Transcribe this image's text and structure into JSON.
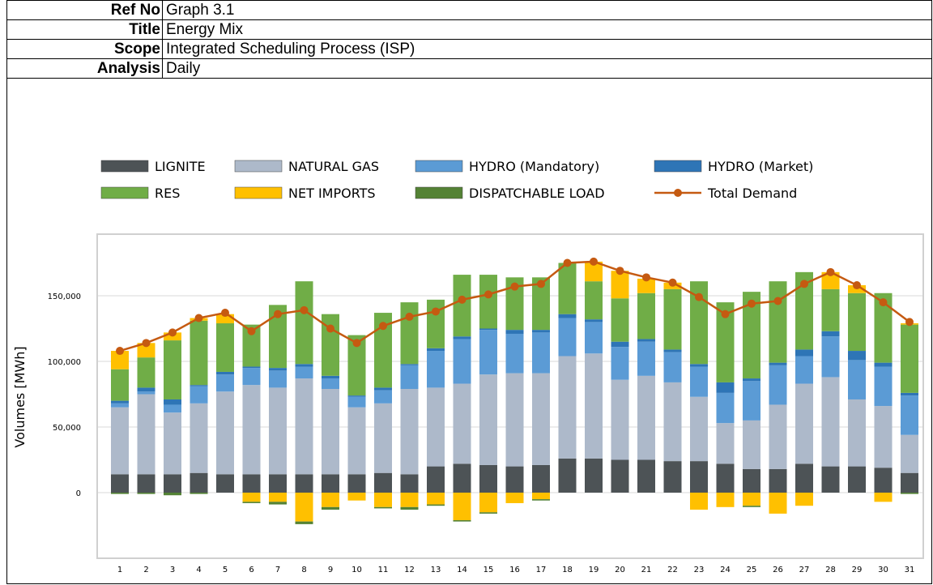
{
  "header": {
    "rows": [
      [
        "Ref No",
        "Graph 3.1"
      ],
      [
        "Title",
        "Energy Mix"
      ],
      [
        "Scope",
        "Integrated Scheduling Process (ISP)"
      ],
      [
        "Analysis",
        "Daily"
      ]
    ]
  },
  "chart_data": {
    "type": "bar",
    "stacked": true,
    "y_label": "Volumes [MWh]",
    "categories": [
      "1",
      "2",
      "3",
      "4",
      "5",
      "6",
      "7",
      "8",
      "9",
      "10",
      "11",
      "12",
      "13",
      "14",
      "15",
      "16",
      "17",
      "18",
      "19",
      "20",
      "21",
      "22",
      "23",
      "24",
      "25",
      "26",
      "27",
      "28",
      "29",
      "30",
      "31"
    ],
    "ylim": [
      -50000,
      200000
    ],
    "yticks": [
      {
        "value": 0,
        "label": "0"
      },
      {
        "value": 50000,
        "label": "50,000"
      },
      {
        "value": 100000,
        "label": "100,000"
      },
      {
        "value": 150000,
        "label": "150,000"
      }
    ],
    "grid": true,
    "series": [
      {
        "name": "LIGNITE",
        "color": "#4d5356",
        "values": [
          14000,
          14000,
          14000,
          15000,
          14000,
          14000,
          14000,
          14000,
          14000,
          14000,
          15000,
          14000,
          20000,
          22000,
          21000,
          20000,
          21000,
          26000,
          26000,
          25000,
          25000,
          24000,
          24000,
          22000,
          18000,
          18000,
          22000,
          20000,
          20000,
          19000,
          15000
        ]
      },
      {
        "name": "NATURAL GAS",
        "color": "#adb9ca",
        "values": [
          51000,
          61000,
          47000,
          53000,
          63000,
          68000,
          66000,
          73000,
          65000,
          51000,
          53000,
          65000,
          60000,
          61000,
          69000,
          71000,
          70000,
          78000,
          80000,
          61000,
          64000,
          60000,
          49000,
          31000,
          37000,
          49000,
          61000,
          68000,
          51000,
          47000,
          29000
        ]
      },
      {
        "name": "HYDRO (Mandatory)",
        "color": "#5b9bd5",
        "values": [
          3000,
          2000,
          6000,
          13000,
          13000,
          13000,
          13000,
          9000,
          8000,
          8000,
          10000,
          18000,
          28000,
          34000,
          34000,
          30000,
          31000,
          29000,
          24000,
          25000,
          26000,
          23000,
          23000,
          23000,
          30000,
          30000,
          21000,
          31000,
          30000,
          30000,
          30000
        ]
      },
      {
        "name": "HYDRO (Market)",
        "color": "#2e75b6",
        "values": [
          2000,
          3000,
          4000,
          1000,
          2000,
          1000,
          2000,
          2000,
          2000,
          1000,
          2000,
          1000,
          2000,
          2000,
          1000,
          3000,
          2000,
          3000,
          2000,
          4000,
          2000,
          2000,
          2000,
          8000,
          2000,
          2000,
          5000,
          4000,
          7000,
          3000,
          2000
        ]
      },
      {
        "name": "RES",
        "color": "#70ad47",
        "values": [
          24000,
          23000,
          45000,
          49000,
          37000,
          32000,
          48000,
          63000,
          47000,
          46000,
          57000,
          47000,
          37000,
          47000,
          41000,
          40000,
          40000,
          39000,
          29000,
          33000,
          35000,
          46000,
          63000,
          61000,
          66000,
          62000,
          59000,
          32000,
          44000,
          53000,
          52000
        ]
      },
      {
        "name": "NET IMPORTS",
        "color": "#ffc000",
        "values": [
          14000,
          11000,
          6000,
          2000,
          7000,
          -7000,
          -7000,
          -22000,
          -11000,
          -6000,
          -11000,
          -11000,
          -9000,
          -21000,
          -15000,
          -8000,
          -5000,
          0,
          15000,
          21000,
          11000,
          5000,
          -13000,
          -11000,
          -10000,
          -16000,
          -10000,
          13000,
          6000,
          -7000,
          1000
        ]
      },
      {
        "name": "DISPATCHABLE LOAD",
        "color": "#548235",
        "values": [
          -1000,
          -1000,
          -2000,
          -1000,
          0,
          -1000,
          -2000,
          -2000,
          -2000,
          0,
          -1000,
          -2000,
          -1000,
          -1000,
          -1000,
          0,
          -1000,
          0,
          0,
          0,
          0,
          0,
          0,
          0,
          -1000,
          0,
          0,
          0,
          0,
          0,
          -1000
        ]
      },
      {
        "name": "Total Demand",
        "color": "#c55a11",
        "type": "line",
        "values": [
          108000,
          114000,
          122000,
          133000,
          137000,
          123000,
          136000,
          139000,
          125000,
          114000,
          127000,
          134000,
          138000,
          147000,
          151000,
          157000,
          159000,
          175000,
          176000,
          169000,
          164000,
          160000,
          149000,
          136000,
          144000,
          146000,
          159000,
          168000,
          158000,
          145000,
          130000
        ]
      }
    ]
  }
}
